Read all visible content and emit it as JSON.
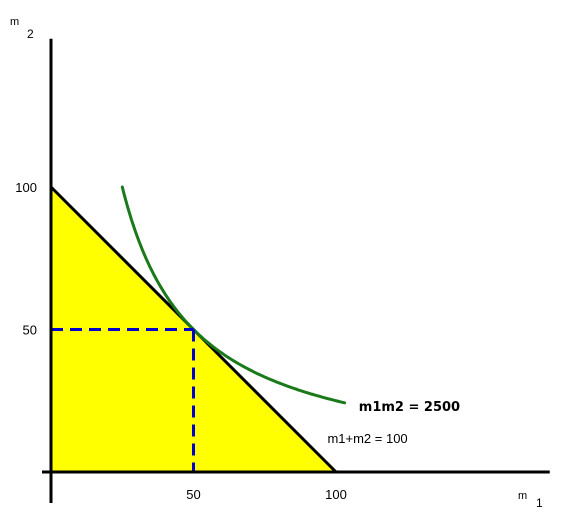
{
  "chart_data": {
    "type": "line",
    "xlabel": {
      "symbol": "m",
      "subscript": "1"
    },
    "ylabel": {
      "symbol": "m",
      "subscript": "2"
    },
    "xlim": [
      0,
      175
    ],
    "ylim": [
      0,
      152
    ],
    "xticks": [
      "50",
      "100"
    ],
    "yticks": [
      "50",
      "100"
    ],
    "feasible_region": {
      "vertices": [
        [
          0,
          0
        ],
        [
          0,
          100
        ],
        [
          100,
          0
        ]
      ],
      "color": "#ffff00"
    },
    "series": [
      {
        "name": "m1+m2 = 100",
        "kind": "budget-line",
        "color": "#000000",
        "points": [
          [
            0,
            100
          ],
          [
            100,
            0
          ]
        ]
      },
      {
        "name": "m1m2  =  2500",
        "kind": "indifference-curve",
        "color": "#1a7a1a",
        "x_range": [
          25,
          103
        ],
        "equation": "m1*m2 = 2500"
      }
    ],
    "tangency_point": {
      "x": 50,
      "y": 50,
      "color": "#0000cc",
      "style": "dashed"
    },
    "grid": false,
    "legend": "none"
  }
}
